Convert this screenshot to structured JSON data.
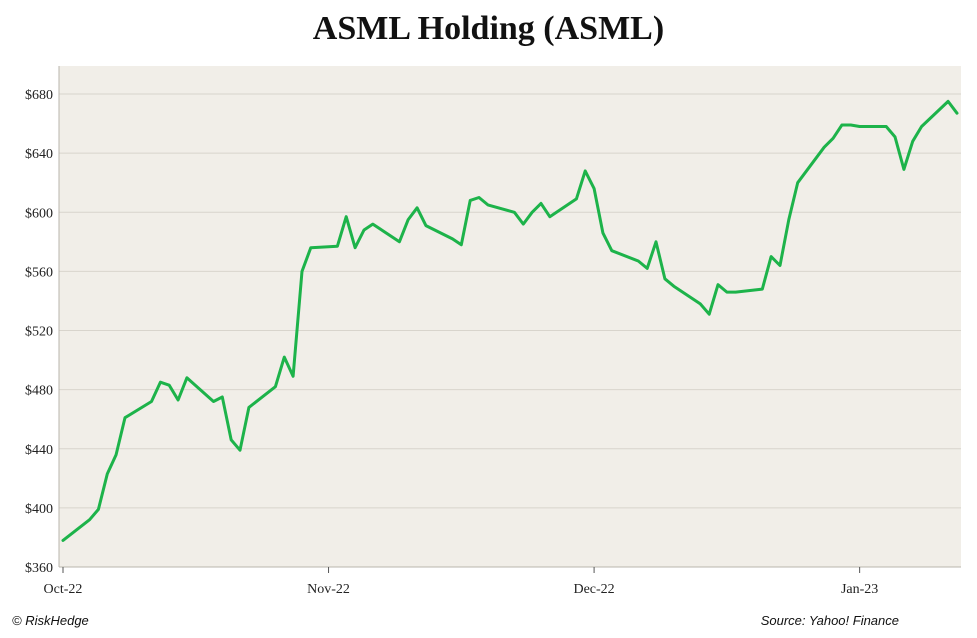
{
  "chart_data": {
    "type": "line",
    "title": "ASML Holding (ASML)",
    "xlabel": "",
    "ylabel": "",
    "ylim": [
      360,
      700
    ],
    "yticks": [
      360,
      400,
      440,
      480,
      520,
      560,
      600,
      640,
      680
    ],
    "ytick_labels": [
      "$360",
      "$400",
      "$440",
      "$480",
      "$520",
      "$560",
      "$600",
      "$640",
      "$680"
    ],
    "xlim": [
      0,
      101
    ],
    "xticks": [
      0,
      30,
      60,
      90
    ],
    "xtick_labels": [
      "Oct-22",
      "Nov-22",
      "Dec-22",
      "Jan-23"
    ],
    "grid": true,
    "series": [
      {
        "name": "ASML",
        "color": "#1db34a",
        "x": [
          0,
          3,
          4,
          5,
          6,
          7,
          10,
          11,
          12,
          13,
          14,
          17,
          18,
          19,
          20,
          21,
          24,
          25,
          26,
          27,
          28,
          31,
          32,
          33,
          34,
          35,
          38,
          39,
          40,
          41,
          44,
          45,
          46,
          47,
          48,
          51,
          52,
          53,
          54,
          55,
          58,
          59,
          60,
          61,
          62,
          65,
          66,
          67,
          68,
          69,
          72,
          73,
          74,
          75,
          76,
          79,
          80,
          81,
          82,
          83,
          86,
          87,
          88,
          89,
          90,
          93,
          94,
          95,
          96,
          97,
          100,
          101
        ],
        "y": [
          378,
          392,
          399,
          423,
          436,
          461,
          472,
          485,
          483,
          473,
          488,
          472,
          475,
          446,
          439,
          468,
          482,
          502,
          489,
          560,
          576,
          577,
          597,
          576,
          588,
          592,
          580,
          595,
          603,
          591,
          582,
          578,
          608,
          610,
          605,
          600,
          592,
          600,
          606,
          597,
          609,
          628,
          616,
          586,
          574,
          567,
          562,
          580,
          555,
          550,
          538,
          531,
          551,
          546,
          546,
          548,
          570,
          564,
          595,
          620,
          644,
          650,
          659,
          659,
          658,
          658,
          651,
          629,
          648,
          658,
          675,
          667
        ]
      }
    ]
  },
  "footer": {
    "credit": "© RiskHedge",
    "source": "Source: Yahoo! Finance"
  },
  "colors": {
    "plot_background": "#f1eee8",
    "gridline": "#d8d4cc",
    "line": "#1db34a"
  }
}
